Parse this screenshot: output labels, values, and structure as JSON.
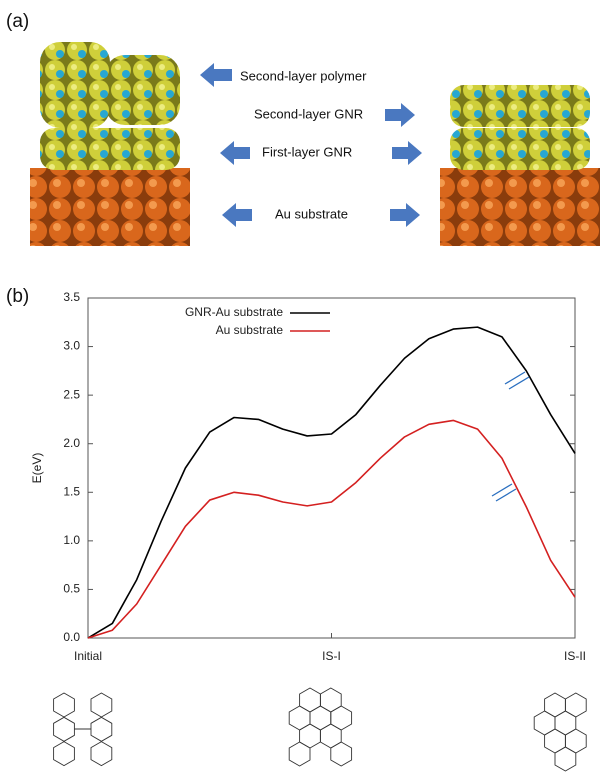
{
  "figure": {
    "panel_a": "(a)",
    "panel_b": "(b)",
    "annotations": [
      "Second-layer polymer",
      "Second-layer GNR",
      "First-layer GNR",
      "Au substrate"
    ]
  },
  "chart_data": {
    "type": "line",
    "y_label": "E(eV)",
    "xlim": [
      0,
      2
    ],
    "xticks": [
      {
        "value": 0,
        "label": "Initial"
      },
      {
        "value": 1,
        "label": "IS-I"
      },
      {
        "value": 2,
        "label": "IS-II"
      }
    ],
    "ylim": [
      0,
      3.5
    ],
    "yticks": [
      {
        "value": 0,
        "label": "0.0"
      },
      0.5,
      {
        "value": 1,
        "label": "1.0"
      },
      1.5,
      {
        "value": 2,
        "label": "2.0"
      },
      2.5,
      {
        "value": 3,
        "label": "3.0"
      },
      3.5
    ],
    "legend": "upper left",
    "series": [
      {
        "name": "GNR-Au substrate",
        "color": "#000000",
        "x": [
          0,
          0.1,
          0.2,
          0.3,
          0.4,
          0.5,
          0.6,
          0.7,
          0.8,
          0.9,
          1.0,
          1.1,
          1.2,
          1.3,
          1.4,
          1.5,
          1.6,
          1.7,
          1.8,
          1.9,
          2.0
        ],
        "values": [
          0,
          0.15,
          0.6,
          1.2,
          1.75,
          2.12,
          2.27,
          2.25,
          2.15,
          2.08,
          2.1,
          2.3,
          2.6,
          2.88,
          3.08,
          3.18,
          3.2,
          3.1,
          2.75,
          2.3,
          1.9
        ]
      },
      {
        "name": "Au substrate",
        "color": "#d42020",
        "x": [
          0,
          0.1,
          0.2,
          0.3,
          0.4,
          0.5,
          0.6,
          0.7,
          0.8,
          0.9,
          1.0,
          1.1,
          1.2,
          1.3,
          1.4,
          1.5,
          1.6,
          1.7,
          1.8,
          1.9,
          2.0
        ],
        "values": [
          0,
          0.08,
          0.35,
          0.75,
          1.15,
          1.42,
          1.5,
          1.47,
          1.4,
          1.36,
          1.4,
          1.6,
          1.85,
          2.07,
          2.2,
          2.24,
          2.15,
          1.85,
          1.35,
          0.8,
          0.42
        ]
      }
    ]
  }
}
